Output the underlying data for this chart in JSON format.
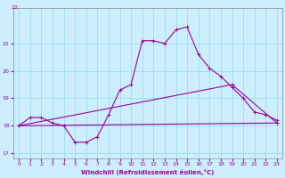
{
  "xlabel": "Windchill (Refroidissement éolien,°C)",
  "xlim": [
    -0.5,
    23.5
  ],
  "ylim": [
    16.8,
    22.3
  ],
  "yticks": [
    17,
    18,
    19,
    20,
    21
  ],
  "xticks": [
    0,
    1,
    2,
    3,
    4,
    5,
    6,
    7,
    8,
    9,
    10,
    11,
    12,
    13,
    14,
    15,
    16,
    17,
    18,
    19,
    20,
    21,
    22,
    23
  ],
  "bg_color": "#cceeff",
  "grid_color": "#99ddee",
  "line_color": "#990099",
  "line1_x": [
    0,
    1,
    2,
    3,
    4,
    5,
    6,
    7,
    8,
    9,
    10,
    11,
    12,
    13,
    14,
    15,
    16,
    17,
    18,
    19,
    20,
    21,
    22,
    23
  ],
  "line1_y": [
    18.0,
    18.3,
    18.3,
    18.1,
    18.0,
    17.4,
    17.4,
    17.6,
    18.4,
    19.3,
    19.5,
    21.1,
    21.1,
    21.0,
    21.5,
    21.6,
    20.6,
    20.1,
    19.8,
    19.4,
    19.0,
    18.5,
    18.4,
    18.2
  ],
  "line2_x": [
    0,
    23
  ],
  "line2_y": [
    18.0,
    18.1
  ],
  "line3_x": [
    0,
    19,
    23
  ],
  "line3_y": [
    18.0,
    19.5,
    18.1
  ]
}
